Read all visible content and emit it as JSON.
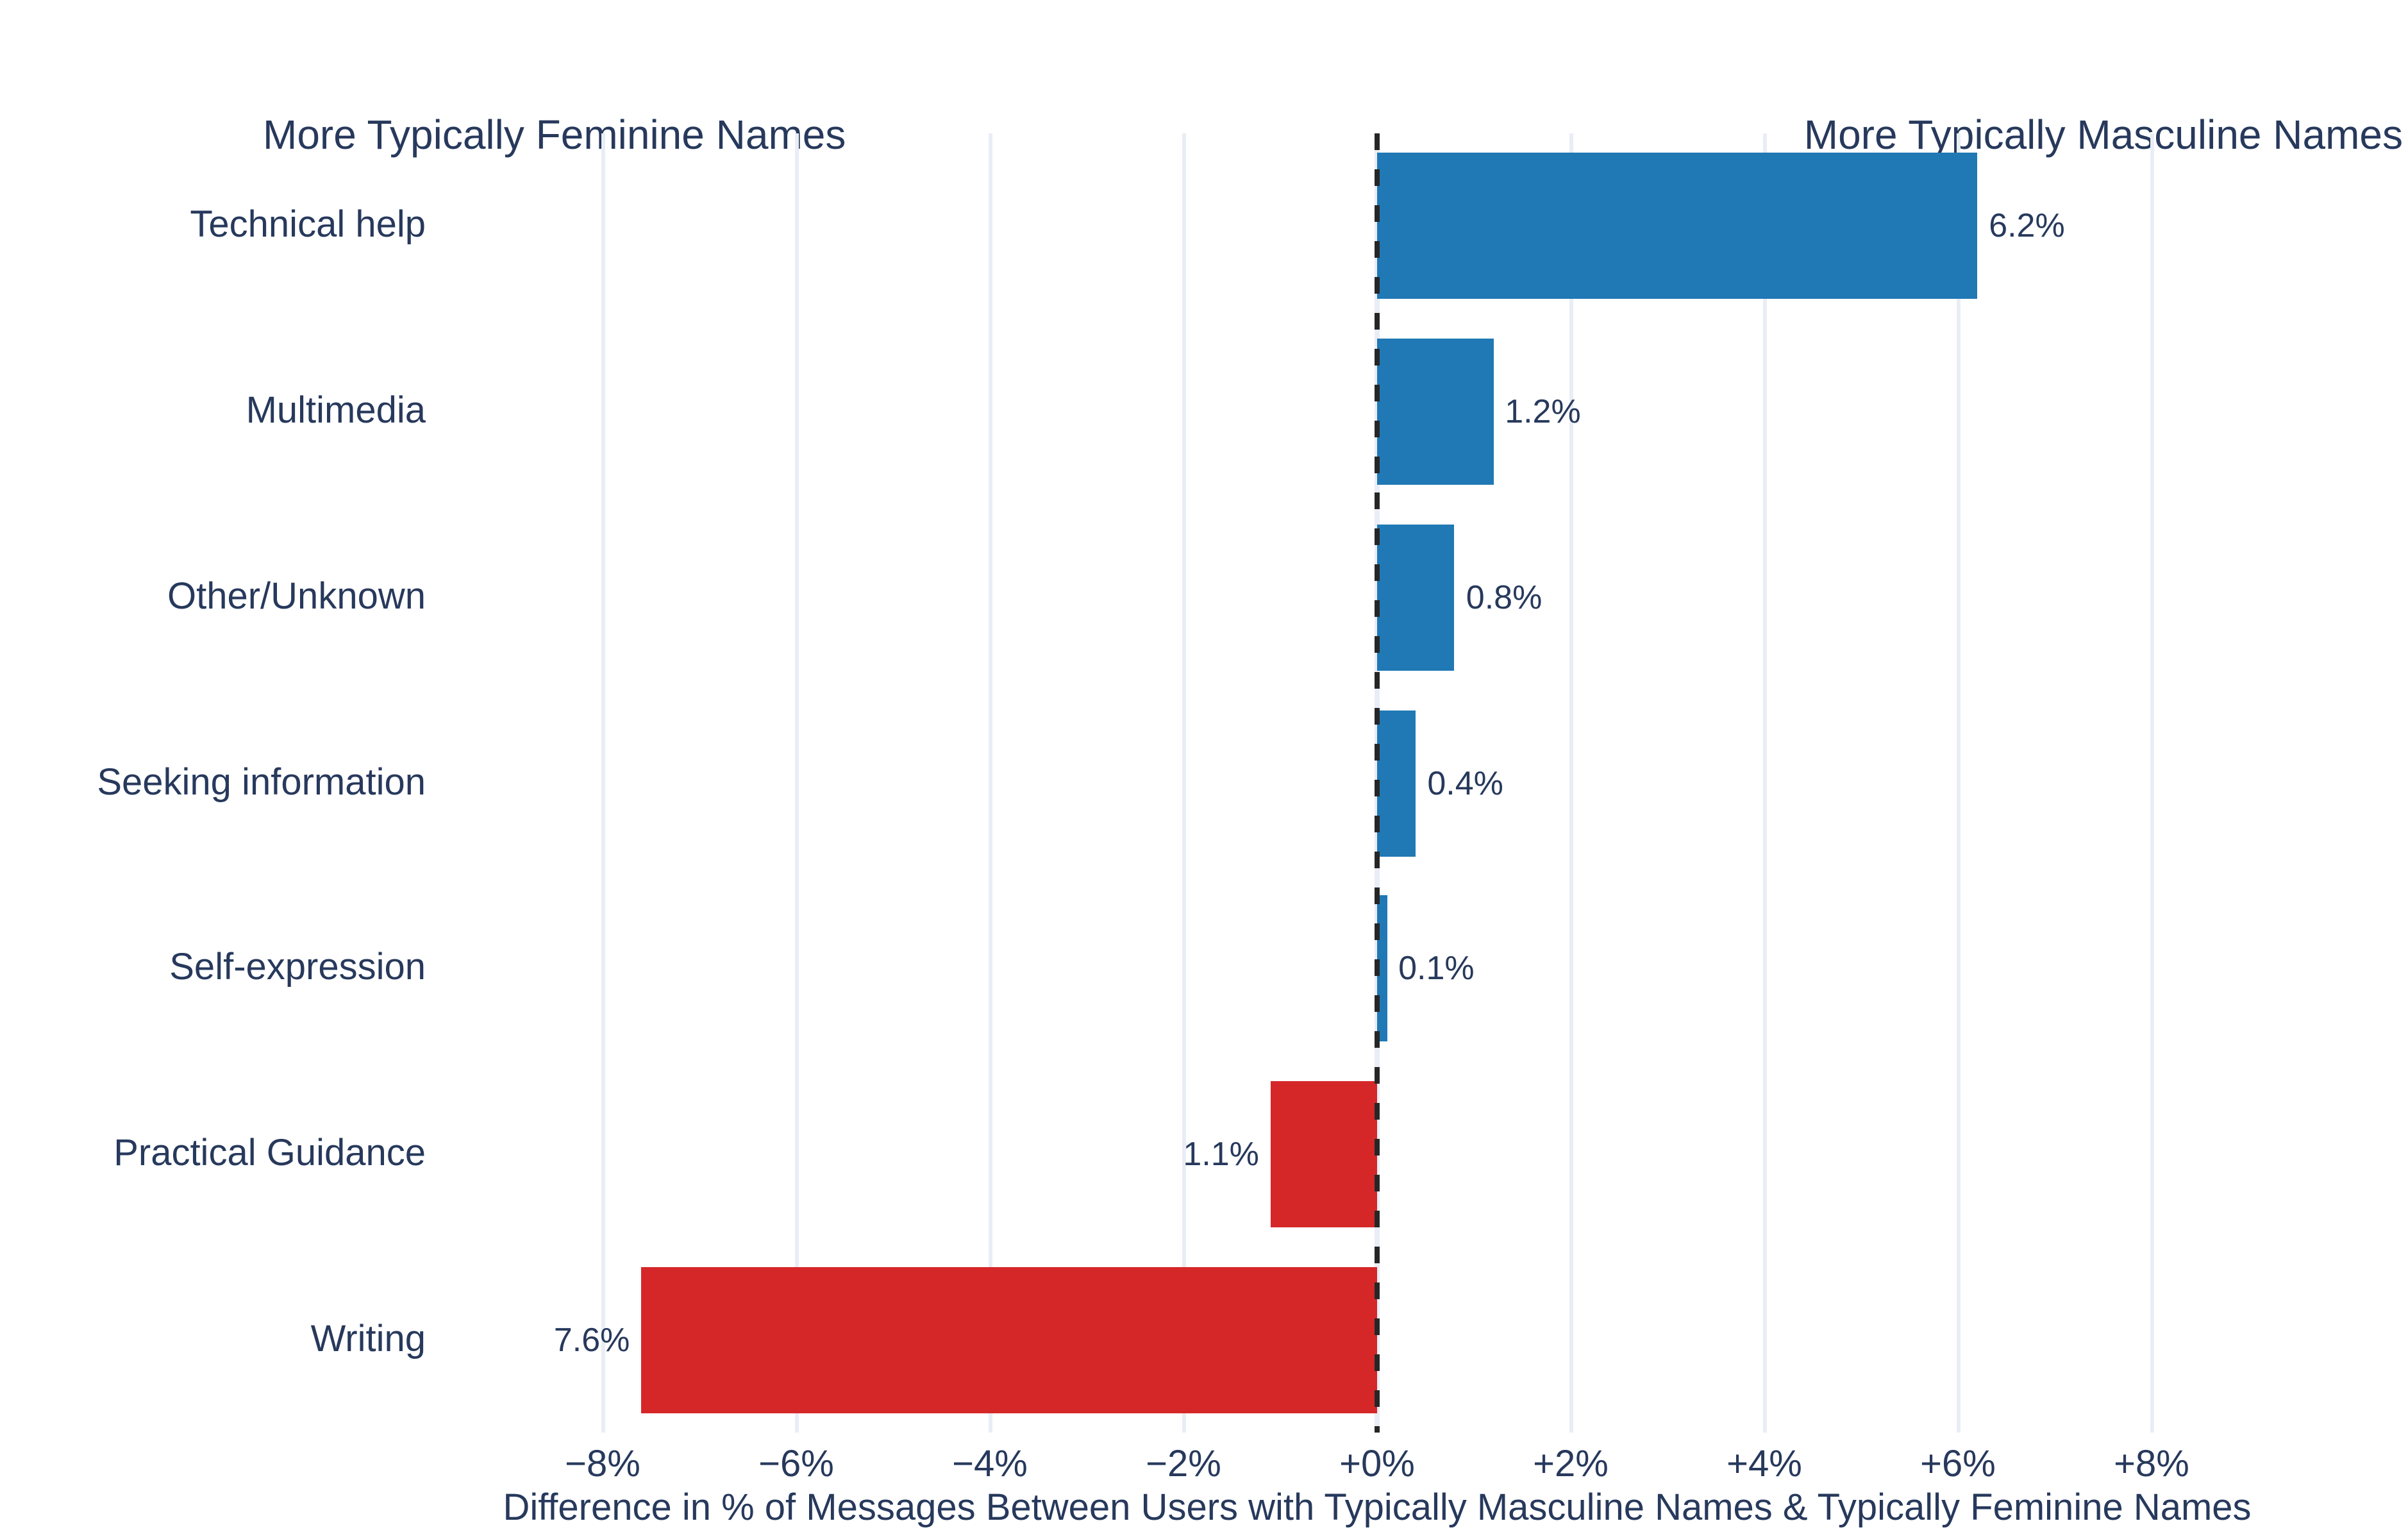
{
  "chart_data": {
    "type": "bar",
    "orientation": "horizontal",
    "title": "",
    "categories": [
      "Technical help",
      "Multimedia",
      "Other/Unknown",
      "Seeking information",
      "Self-expression",
      "Practical Guidance",
      "Writing"
    ],
    "values": [
      6.2,
      1.2,
      0.8,
      0.4,
      0.1,
      -1.1,
      -7.6
    ],
    "value_labels": [
      "6.2%",
      "1.2%",
      "0.8%",
      "0.4%",
      "0.1%",
      "1.1%",
      "7.6%"
    ],
    "x_ticks": [
      -8,
      -6,
      -4,
      -2,
      0,
      2,
      4,
      6,
      8
    ],
    "x_tick_labels": [
      "−8%",
      "−6%",
      "−4%",
      "−2%",
      "+0%",
      "+2%",
      "+4%",
      "+6%",
      "+8%"
    ],
    "xlabel": "Difference in % of Messages Between Users with Typically Masculine Names & Typically Feminine Names",
    "xlim": [
      -8.6,
      8.6
    ],
    "grid": "vertical-on",
    "zero_line": "dashed-black",
    "annotation_left": "More Typically Feminine Names",
    "annotation_right": "More Typically Masculine Names",
    "colors": {
      "positive_bar": "#2078b4",
      "negative_bar": "#d62728",
      "text": "#27395c",
      "gridline": "#e9edf5",
      "zero_dash": "#262626",
      "background": "#ffffff"
    }
  }
}
